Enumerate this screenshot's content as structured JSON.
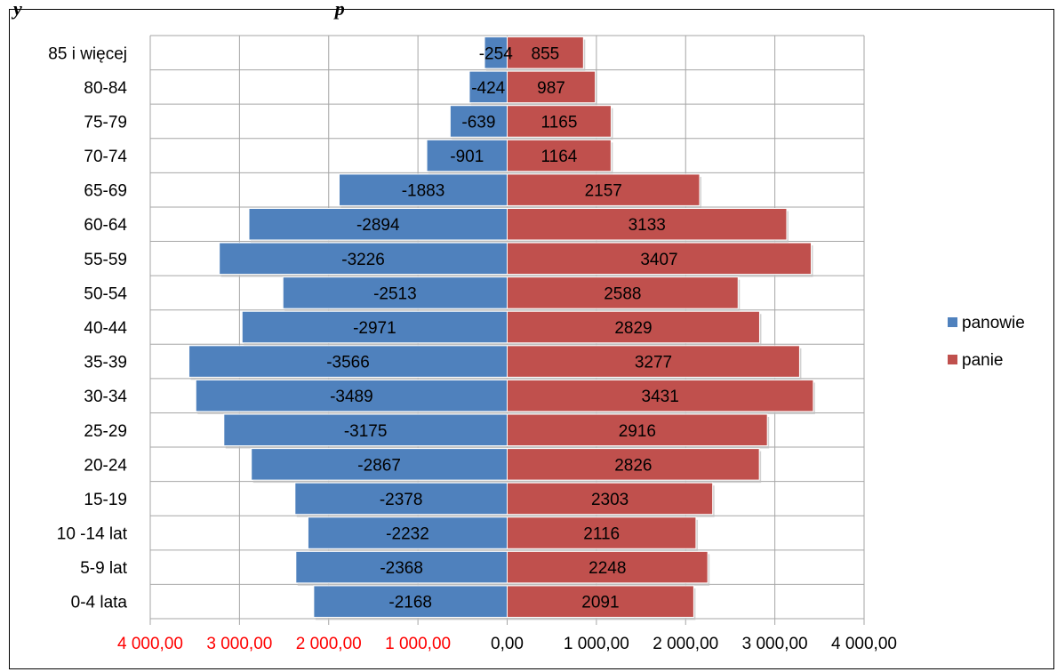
{
  "clipped_heading": "y",
  "clipped_heading_tail": "p",
  "chart_data": {
    "type": "bar",
    "orientation": "horizontal",
    "layout": "population-pyramid",
    "categories": [
      "85 i więcej",
      "80-84",
      "75-79",
      "70-74",
      "65-69",
      "60-64",
      "55-59",
      "50-54",
      "40-44",
      "35-39",
      "30-34",
      "25-29",
      "20-24",
      "15-19",
      "10 -14 lat",
      "5-9 lat",
      "0-4 lata"
    ],
    "series": [
      {
        "name": "panowie",
        "color": "#4f81bd",
        "values": [
          -254,
          -424,
          -639,
          -901,
          -1883,
          -2894,
          -3226,
          -2513,
          -2971,
          -3566,
          -3489,
          -3175,
          -2867,
          -2378,
          -2232,
          -2368,
          -2168
        ]
      },
      {
        "name": "panie",
        "color": "#c0504d",
        "values": [
          855,
          987,
          1165,
          1164,
          2157,
          3133,
          3407,
          2588,
          2829,
          3277,
          3431,
          2916,
          2826,
          2303,
          2116,
          2248,
          2091
        ]
      }
    ],
    "xlim": [
      -4000,
      4000
    ],
    "x_ticks": [
      -4000,
      -3000,
      -2000,
      -1000,
      0,
      1000,
      2000,
      3000,
      4000
    ],
    "x_tick_labels": [
      "4 000,00",
      "3 000,00",
      "2 000,00",
      "1 000,00",
      "0,00",
      "1 000,00",
      "2 000,00",
      "3 000,00",
      "4 000,00"
    ],
    "negative_tick_color": "#ff0000",
    "positive_tick_color": "#000000",
    "grid": true,
    "legend_position": "right"
  }
}
